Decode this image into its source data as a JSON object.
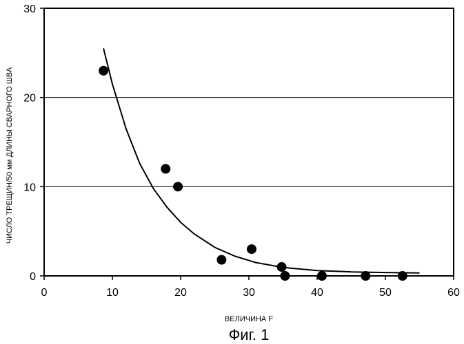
{
  "chart_data": {
    "type": "scatter",
    "xlabel": "ВЕЛИЧИНА F",
    "ylabel": "ЧИСЛО ТРЕЩИН/50 мм ДЛИНЫ СВАРНОГО ШВА",
    "xlim": [
      0,
      60
    ],
    "ylim": [
      0,
      30
    ],
    "x_ticks": [
      0,
      10,
      20,
      30,
      40,
      50,
      60
    ],
    "y_ticks": [
      0,
      10,
      20,
      30
    ],
    "grid": "horizontal",
    "points": [
      {
        "x": 8.7,
        "y": 23
      },
      {
        "x": 17.8,
        "y": 12
      },
      {
        "x": 19.6,
        "y": 10
      },
      {
        "x": 26.0,
        "y": 1.8
      },
      {
        "x": 30.4,
        "y": 3
      },
      {
        "x": 34.8,
        "y": 1
      },
      {
        "x": 35.3,
        "y": 0
      },
      {
        "x": 40.7,
        "y": 0
      },
      {
        "x": 47.1,
        "y": 0
      },
      {
        "x": 52.5,
        "y": 0
      }
    ],
    "fit_curve": [
      {
        "x": 8.7,
        "y": 25.5
      },
      {
        "x": 10,
        "y": 21.5
      },
      {
        "x": 12,
        "y": 16.5
      },
      {
        "x": 14,
        "y": 12.6
      },
      {
        "x": 16,
        "y": 9.8
      },
      {
        "x": 18,
        "y": 7.7
      },
      {
        "x": 20,
        "y": 6.0
      },
      {
        "x": 22,
        "y": 4.7
      },
      {
        "x": 25,
        "y": 3.2
      },
      {
        "x": 28,
        "y": 2.2
      },
      {
        "x": 31,
        "y": 1.5
      },
      {
        "x": 35,
        "y": 0.95
      },
      {
        "x": 40,
        "y": 0.6
      },
      {
        "x": 45,
        "y": 0.45
      },
      {
        "x": 50,
        "y": 0.38
      },
      {
        "x": 55,
        "y": 0.33
      }
    ]
  },
  "caption": "Фиг. 1"
}
